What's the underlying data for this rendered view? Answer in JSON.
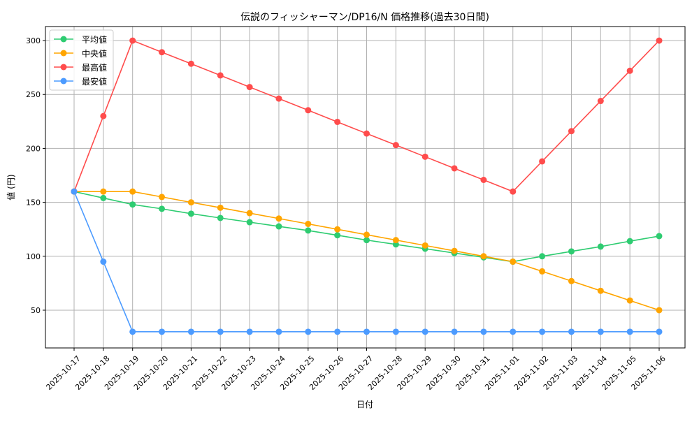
{
  "chart_data": {
    "type": "line",
    "title": "伝説のフィッシャーマン/DP16/N 価格推移(過去30日間)",
    "xlabel": "日付",
    "ylabel": "値 (円)",
    "ylim": [
      15,
      313
    ],
    "yticks": [
      50,
      100,
      150,
      200,
      250,
      300
    ],
    "grid": true,
    "legend_position": "top-left",
    "categories": [
      "2025-10-17",
      "2025-10-18",
      "2025-10-19",
      "2025-10-20",
      "2025-10-21",
      "2025-10-22",
      "2025-10-23",
      "2025-10-24",
      "2025-10-25",
      "2025-10-26",
      "2025-10-27",
      "2025-10-28",
      "2025-10-29",
      "2025-10-30",
      "2025-10-31",
      "2025-11-01",
      "2025-11-02",
      "2025-11-03",
      "2025-11-04",
      "2025-11-05",
      "2025-11-06"
    ],
    "series": [
      {
        "name": "平均値",
        "color": "#2ecc71",
        "values": [
          160,
          154,
          148,
          144,
          139.5,
          135.5,
          131.6,
          127.7,
          123.9,
          119.5,
          115,
          111,
          107,
          103,
          99,
          95,
          100,
          104.5,
          109,
          114,
          118.7
        ]
      },
      {
        "name": "中央値",
        "color": "#ffa500",
        "values": [
          160,
          160,
          160,
          155,
          150,
          145,
          140,
          135,
          130,
          125,
          120,
          115,
          110,
          105,
          100,
          95,
          86,
          77,
          68,
          59,
          50
        ]
      },
      {
        "name": "最高値",
        "color": "#ff4c4c",
        "values": [
          160,
          230,
          300,
          289.2,
          278.5,
          267.7,
          256.9,
          246.2,
          235.4,
          224.6,
          213.8,
          203.1,
          192.3,
          181.5,
          170.8,
          160,
          188,
          216,
          244,
          272,
          300
        ]
      },
      {
        "name": "最安値",
        "color": "#4c9bff",
        "values": [
          160,
          95,
          30,
          30,
          30,
          30,
          30,
          30,
          30,
          30,
          30,
          30,
          30,
          30,
          30,
          30,
          30,
          30,
          30,
          30,
          30
        ]
      }
    ]
  }
}
